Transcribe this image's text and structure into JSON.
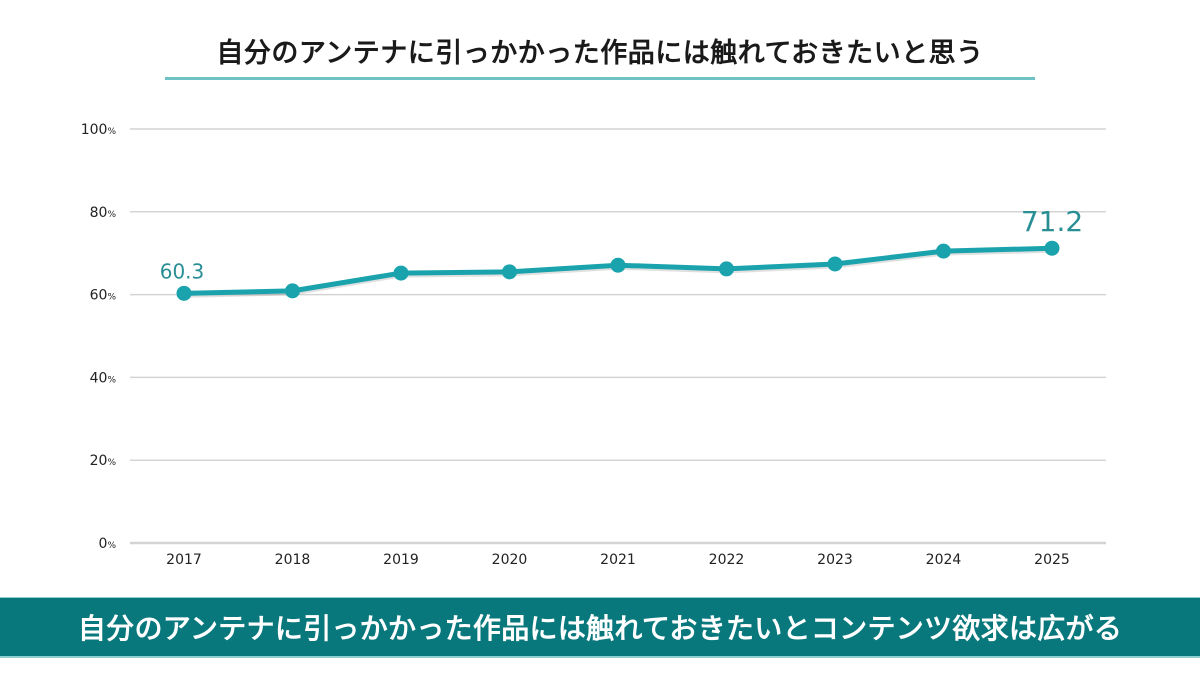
{
  "header": {
    "title": "自分のアンテナに引っかかった作品には触れておきたいと思う"
  },
  "footer": {
    "banner_text": "自分のアンテナに引っかかった作品には触れておきたいとコンテンツ欲求は広がる"
  },
  "colors": {
    "line": "#1aa3ad",
    "label": "#2a8f95",
    "grid": "#d4d4d4",
    "banner_bg": "#08787c",
    "title_underline": "#6fc3c4"
  },
  "chart_data": {
    "type": "line",
    "title": "自分のアンテナに引っかかった作品には触れておきたいと思う",
    "xlabel": "",
    "ylabel": "",
    "categories": [
      "2017",
      "2018",
      "2019",
      "2020",
      "2021",
      "2022",
      "2023",
      "2024",
      "2025"
    ],
    "series": [
      {
        "name": "自分のアンテナに引っかかった作品には触れておきたいと思う",
        "values": [
          60.3,
          60.9,
          65.2,
          65.5,
          67.1,
          66.2,
          67.4,
          70.5,
          71.2
        ]
      }
    ],
    "ylim": [
      0,
      100
    ],
    "yticks": [
      0,
      20,
      40,
      60,
      80,
      100
    ],
    "ytick_labels": [
      "0",
      "20",
      "40",
      "60",
      "80",
      "100"
    ],
    "ytick_suffix": "%",
    "grid": true,
    "legend": "none",
    "data_labels": [
      {
        "category": "2017",
        "text": "60.3"
      },
      {
        "category": "2025",
        "text": "71.2"
      }
    ]
  }
}
